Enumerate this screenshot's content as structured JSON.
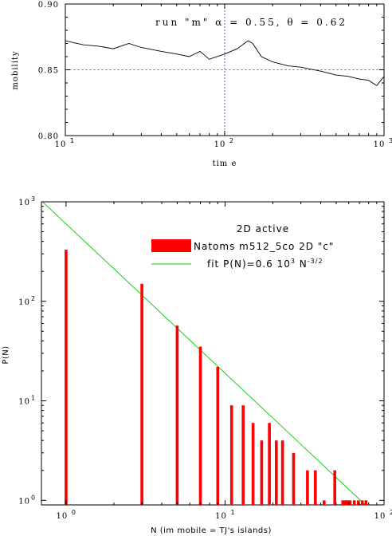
{
  "chart_data": [
    {
      "type": "line",
      "annotation": "run \"m\"   α = 0.55,  θ = 0.62",
      "xlabel": "tim e",
      "ylabel": "mobility",
      "x_scale": "log",
      "xlim": [
        10,
        1000
      ],
      "ylim": [
        0.8,
        0.9
      ],
      "x_ticks": [
        10,
        100,
        1000
      ],
      "x_tick_labels": [
        "10",
        "10",
        "10"
      ],
      "x_tick_exponents": [
        "1",
        "2",
        "3"
      ],
      "y_ticks": [
        0.8,
        0.85,
        0.9
      ],
      "y_tick_labels": [
        "0.80",
        "0.85",
        "0.90"
      ],
      "reference_lines": {
        "hline_y": 0.85,
        "vline_x": 100
      },
      "series": [
        {
          "x": [
            10,
            13,
            16,
            20,
            25,
            30,
            40,
            50,
            60,
            70,
            80,
            100,
            120,
            140,
            150,
            170,
            200,
            250,
            300,
            400,
            500,
            600,
            700,
            800,
            900,
            1000
          ],
          "values": [
            0.872,
            0.869,
            0.868,
            0.866,
            0.87,
            0.867,
            0.864,
            0.862,
            0.86,
            0.864,
            0.858,
            0.862,
            0.866,
            0.872,
            0.87,
            0.86,
            0.856,
            0.853,
            0.852,
            0.849,
            0.846,
            0.845,
            0.843,
            0.842,
            0.838,
            0.845
          ]
        }
      ]
    },
    {
      "type": "bar",
      "title": "2D active",
      "xlabel": "N (im mobile = TJ's islands)",
      "ylabel": "P(N)",
      "x_scale": "log",
      "y_scale": "log",
      "xlim": [
        0.7,
        100
      ],
      "ylim": [
        0.9,
        1000
      ],
      "x_ticks": [
        1,
        10,
        100
      ],
      "x_tick_labels": [
        "10",
        "10",
        "10"
      ],
      "x_tick_exponents": [
        "0",
        "1",
        "2"
      ],
      "y_ticks": [
        1,
        10,
        100,
        1000
      ],
      "y_tick_labels": [
        "10",
        "10",
        "10",
        "10"
      ],
      "y_tick_exponents": [
        "0",
        "1",
        "2",
        "3"
      ],
      "legend": {
        "position": "top-right",
        "entries": [
          {
            "label": "Natoms m512_5co 2D \"c\"",
            "color": "#ff0000",
            "kind": "bar"
          },
          {
            "label": "fit P(N)=0.6 10",
            "label_exp": "3",
            "label_tail": " N",
            "label_tail_exp": "-3/2",
            "color": "#00cc00",
            "kind": "line"
          }
        ]
      },
      "series": [
        {
          "name": "Natoms m512_5co 2D \"c\"",
          "color": "#ff0000",
          "x": [
            1,
            3,
            5,
            7,
            9,
            11,
            13,
            15,
            17,
            19,
            21,
            23,
            27,
            33,
            37,
            42,
            49,
            55,
            57,
            59,
            61,
            65,
            69,
            73,
            77
          ],
          "values": [
            330,
            150,
            57,
            35,
            22,
            9,
            9,
            6,
            4,
            6,
            4,
            4,
            3,
            2,
            2,
            1,
            2,
            1,
            1,
            1,
            1,
            1,
            1,
            1,
            1
          ]
        }
      ],
      "fit": {
        "coefficient": 600,
        "exponent": -1.5,
        "color": "#00cc00"
      }
    }
  ]
}
